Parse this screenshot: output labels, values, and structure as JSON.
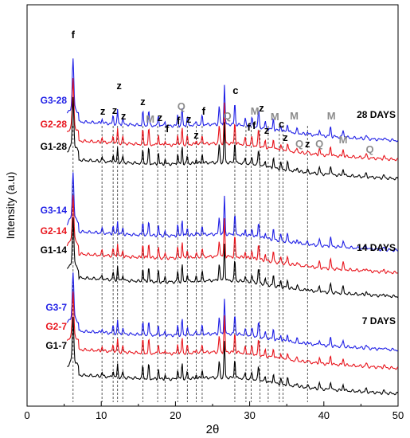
{
  "chart_data": {
    "type": "line",
    "xlabel": "2θ",
    "ylabel": "Intensity (a.u)",
    "xlim": [
      0,
      50
    ],
    "x_ticks": [
      0,
      10,
      20,
      30,
      40,
      50
    ],
    "x_tick_labels": [
      "0",
      "10",
      "20",
      "30",
      "40",
      "50"
    ],
    "grid": false,
    "series_colors": {
      "G1": "#000000",
      "G2": "#e8141c",
      "G3": "#1f1fe6"
    },
    "groups": [
      {
        "label": "28 DAYS",
        "series": [
          {
            "name": "G3-28",
            "color": "#1f1fe6"
          },
          {
            "name": "G2-28",
            "color": "#e8141c"
          },
          {
            "name": "G1-28",
            "color": "#000000"
          }
        ]
      },
      {
        "label": "14 DAYS",
        "series": [
          {
            "name": "G3-14",
            "color": "#1f1fe6"
          },
          {
            "name": "G2-14",
            "color": "#e8141c"
          },
          {
            "name": "G1-14",
            "color": "#000000"
          }
        ]
      },
      {
        "label": "7 DAYS",
        "series": [
          {
            "name": "G3-7",
            "color": "#1f1fe6"
          },
          {
            "name": "G2-7",
            "color": "#e8141c"
          },
          {
            "name": "G1-7",
            "color": "#000000"
          }
        ]
      }
    ],
    "reference_lines_2theta": [
      6.2,
      10.1,
      11.6,
      12.2,
      12.9,
      15.6,
      17.6,
      18.6,
      20.3,
      21.6,
      22.8,
      23.6,
      28.0,
      29.5,
      30.2,
      31.4,
      32.5,
      34.0,
      34.5,
      37.8
    ],
    "peak_annotations": [
      {
        "text": "f",
        "x": 6.2,
        "color": "#000000"
      },
      {
        "text": "z",
        "x": 10.2,
        "color": "#000000"
      },
      {
        "text": "z",
        "x": 11.8,
        "color": "#000000"
      },
      {
        "text": "z",
        "x": 12.4,
        "color": "#000000"
      },
      {
        "text": "z",
        "x": 13.0,
        "color": "#000000"
      },
      {
        "text": "z",
        "x": 15.6,
        "color": "#000000"
      },
      {
        "text": "M",
        "x": 16.6,
        "color": "#8c8c8c"
      },
      {
        "text": "z",
        "x": 17.9,
        "color": "#000000"
      },
      {
        "text": "f",
        "x": 18.9,
        "color": "#000000"
      },
      {
        "text": "Q",
        "x": 20.8,
        "color": "#8c8c8c"
      },
      {
        "text": "f",
        "x": 20.4,
        "color": "#000000"
      },
      {
        "text": "z",
        "x": 21.8,
        "color": "#000000"
      },
      {
        "text": "z",
        "x": 22.8,
        "color": "#000000"
      },
      {
        "text": "f",
        "x": 23.8,
        "color": "#000000"
      },
      {
        "text": "Q",
        "x": 27.0,
        "color": "#8c8c8c"
      },
      {
        "text": "c",
        "x": 28.1,
        "color": "#000000"
      },
      {
        "text": "M",
        "x": 30.7,
        "color": "#8c8c8c"
      },
      {
        "text": "f",
        "x": 29.9,
        "color": "#000000"
      },
      {
        "text": "f",
        "x": 30.6,
        "color": "#000000"
      },
      {
        "text": "z",
        "x": 31.6,
        "color": "#000000"
      },
      {
        "text": "z",
        "x": 32.3,
        "color": "#000000"
      },
      {
        "text": "M",
        "x": 33.4,
        "color": "#8c8c8c"
      },
      {
        "text": "c",
        "x": 34.3,
        "color": "#000000"
      },
      {
        "text": "z",
        "x": 34.8,
        "color": "#000000"
      },
      {
        "text": "M",
        "x": 36.0,
        "color": "#8c8c8c"
      },
      {
        "text": "Q",
        "x": 36.7,
        "color": "#8c8c8c"
      },
      {
        "text": "z",
        "x": 37.8,
        "color": "#000000"
      },
      {
        "text": "Q",
        "x": 39.4,
        "color": "#8c8c8c"
      },
      {
        "text": "M",
        "x": 41.0,
        "color": "#8c8c8c"
      },
      {
        "text": "M",
        "x": 42.6,
        "color": "#8c8c8c"
      },
      {
        "text": "Q",
        "x": 46.2,
        "color": "#8c8c8c"
      }
    ]
  }
}
